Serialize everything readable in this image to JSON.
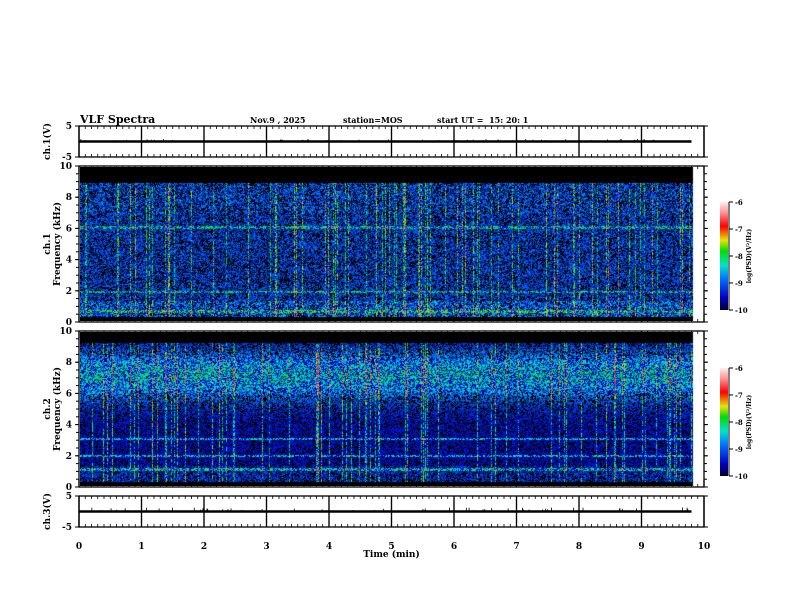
{
  "header": {
    "title": "VLF Spectra",
    "date": "Nov.9 , 2025",
    "station": "station=MOS",
    "start_ut": "start UT =  15: 20: 1"
  },
  "chart_data": [
    {
      "type": "line",
      "name": "ch1-voltage",
      "ylabel": "ch.1(V)",
      "ylim": [
        -5,
        5
      ],
      "yticks": [
        "5",
        "-5"
      ],
      "xlim": [
        0,
        10
      ],
      "level": 0,
      "data_end_min": 9.8
    },
    {
      "type": "heatmap",
      "name": "ch1-spectrogram",
      "ylabel_channel": "ch.1",
      "ylabel": "Frequency (kHz)",
      "ylim": [
        0,
        10
      ],
      "yticks": [
        "0",
        "2",
        "4",
        "6",
        "8",
        "10"
      ],
      "xlim": [
        0,
        10
      ],
      "data_end_min": 9.8,
      "colorbar": {
        "label": "log(PSD)(V²/Hz)",
        "range": [
          -10,
          -6
        ],
        "ticks": [
          "-6",
          "-7",
          "-8",
          "-9",
          "-10"
        ]
      },
      "band_kHz": [
        0.3,
        9
      ],
      "lines_kHz": [
        0.65,
        1.9,
        6.1
      ]
    },
    {
      "type": "heatmap",
      "name": "ch2-spectrogram",
      "ylabel_channel": "ch.2",
      "ylabel": "Frequency (kHz)",
      "ylim": [
        0,
        10
      ],
      "yticks": [
        "0",
        "2",
        "4",
        "6",
        "8",
        "10"
      ],
      "xlim": [
        0,
        10
      ],
      "data_end_min": 9.8,
      "colorbar": {
        "label": "log(PSD)(V²/Hz)",
        "range": [
          -10,
          -6
        ],
        "ticks": [
          "-6",
          "-7",
          "-8",
          "-9",
          "-10"
        ]
      },
      "band_kHz": [
        0.3,
        9.3
      ],
      "lines_kHz": [
        1.1,
        2.0,
        3.1
      ]
    },
    {
      "type": "line",
      "name": "ch3-voltage",
      "ylabel": "ch.3(V)",
      "ylim": [
        -5,
        5
      ],
      "yticks": [
        "5",
        "-5"
      ],
      "xlim": [
        0,
        10
      ],
      "level": 0,
      "data_end_min": 9.8
    }
  ],
  "xaxis": {
    "label": "Time (min)",
    "ticks": [
      "0",
      "1",
      "2",
      "3",
      "4",
      "5",
      "6",
      "7",
      "8",
      "9",
      "10"
    ]
  }
}
